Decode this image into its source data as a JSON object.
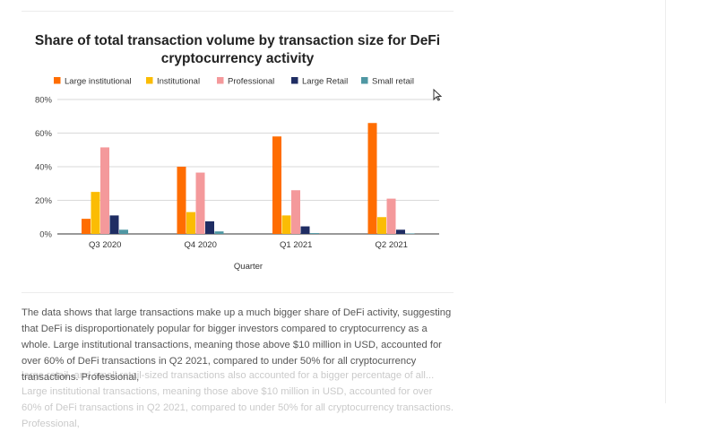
{
  "chart_data": {
    "type": "bar",
    "title": "Share of total transaction volume by transaction size for DeFi cryptocurrency activity",
    "xlabel": "Quarter",
    "ylabel": "",
    "categories": [
      "Q3 2020",
      "Q4 2020",
      "Q1 2021",
      "Q2 2021"
    ],
    "series": [
      {
        "name": "Large institutional",
        "color": "#ff6d01",
        "values": [
          9,
          40,
          58,
          66
        ]
      },
      {
        "name": "Institutional",
        "color": "#fbbc04",
        "values": [
          25,
          13,
          11,
          10
        ]
      },
      {
        "name": "Professional",
        "color": "#f4999b",
        "values": [
          51.5,
          36.5,
          26,
          21
        ]
      },
      {
        "name": "Large Retail",
        "color": "#1f2d63",
        "values": [
          11,
          7.5,
          4.5,
          2.5
        ]
      },
      {
        "name": "Small retail",
        "color": "#4f97a3",
        "values": [
          2.5,
          1.5,
          0.5,
          0.3
        ]
      }
    ],
    "ylim": [
      0,
      80
    ],
    "yticks": [
      0,
      20,
      40,
      60,
      80
    ],
    "ytick_labels": [
      "0%",
      "20%",
      "40%",
      "60%",
      "80%"
    ],
    "grid": true,
    "legend_position": "top"
  },
  "article": {
    "paragraph": "The data shows that large transactions make up a much bigger share of DeFi activity, suggesting that DeFi is disproportionately popular for bigger investors compared to cryptocurrency as a whole. Large institutional transactions, meaning those above $10 million in USD, accounted for over 60% of DeFi transactions in Q2 2021, compared to under 50% for all cryptocurrency transactions. Professional,",
    "ghost_text": "large retail, and small retail-sized transactions also accounted for a bigger percentage of all... Large institutional transactions, meaning those above $10 million in USD, accounted for over 60% of DeFi transactions in Q2 2021, compared to under 50% for all cryptocurrency transactions. Professional,"
  }
}
